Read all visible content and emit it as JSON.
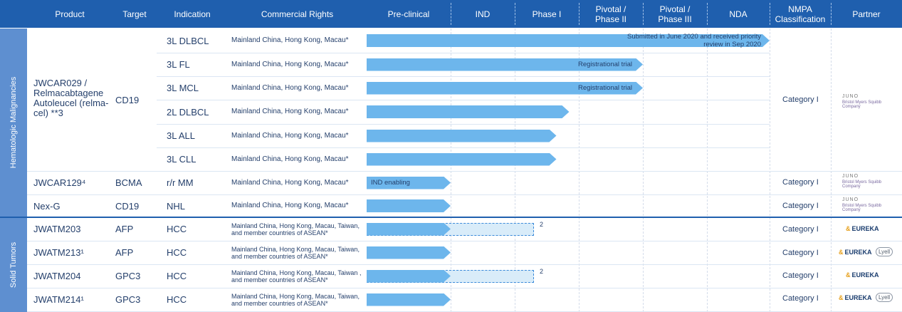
{
  "header": {
    "product": "Product",
    "target": "Target",
    "indication": "Indication",
    "rights": "Commercial Rights",
    "preclinical": "Pre-clinical",
    "ind": "IND",
    "phase1": "Phase I",
    "pivotal2": "Pivotal / Phase II",
    "pivotal3": "Pivotal / Phase III",
    "nda": "NDA",
    "nmpa": "NMPA Classification",
    "partner": "Partner"
  },
  "groups": {
    "heme": "Hematologic Malignancies",
    "solid": "Solid Tumors"
  },
  "rows": [
    {
      "product": "JWCAR029 / Relmacabtagene Autoleucel (relma-cel) **3",
      "target": "CD19",
      "indication": "3L DLBCL",
      "rights": "Mainland China, Hong Kong, Macau*",
      "bar_end_stage": 6.0,
      "bar_note": "Submitted in June 2020 and received priority review in Sep 2020"
    },
    {
      "product": "",
      "target": "",
      "indication": "3L FL",
      "rights": "Mainland China, Hong Kong, Macau*",
      "bar_end_stage": 4.0,
      "bar_note": "Registrational trial"
    },
    {
      "product": "",
      "target": "",
      "indication": "3L MCL",
      "rights": "Mainland China, Hong Kong, Macau*",
      "bar_end_stage": 4.0,
      "bar_note": "Registrational trial"
    },
    {
      "product": "",
      "target": "",
      "indication": "2L DLBCL",
      "rights": "Mainland China, Hong Kong, Macau*",
      "bar_end_stage": 2.85,
      "bar_note": ""
    },
    {
      "product": "",
      "target": "",
      "indication": "3L ALL",
      "rights": "Mainland China, Hong Kong, Macau*",
      "bar_end_stage": 2.65,
      "bar_note": ""
    },
    {
      "product": "",
      "target": "",
      "indication": "3L CLL",
      "rights": "Mainland China, Hong Kong, Macau*",
      "bar_end_stage": 2.65,
      "bar_note": ""
    },
    {
      "product": "JWCAR129⁴",
      "target": "BCMA",
      "indication": "r/r MM",
      "rights": "Mainland China, Hong Kong, Macau*",
      "bar_end_stage": 1.0,
      "bar_note": "IND enabling"
    },
    {
      "product": "Nex-G",
      "target": "CD19",
      "indication": "NHL",
      "rights": "Mainland China, Hong Kong, Macau*",
      "bar_end_stage": 1.0,
      "bar_note": ""
    },
    {
      "product": "JWATM203",
      "target": "AFP",
      "indication": "HCC",
      "rights": "Mainland China, Hong Kong, Macau, Taiwan, and member countries of ASEAN*",
      "bar_end_stage": 1.0,
      "dashed_end_stage": 2.3,
      "dashed_note": "2"
    },
    {
      "product": "JWATM213¹",
      "target": "AFP",
      "indication": "HCC",
      "rights": "Mainland China, Hong Kong, Macau, Taiwan, and member countries of ASEAN*",
      "bar_end_stage": 1.0
    },
    {
      "product": "JWATM204",
      "target": "GPC3",
      "indication": "HCC",
      "rights": "Mainland China, Hong Kong, Macau, Taiwan , and member countries of ASEAN*",
      "bar_end_stage": 1.0,
      "dashed_end_stage": 2.3,
      "dashed_note": "2"
    },
    {
      "product": "JWATM214¹",
      "target": "GPC3",
      "indication": "HCC",
      "rights": "Mainland China, Hong Kong, Macau, Taiwan, and member countries of ASEAN*",
      "bar_end_stage": 1.0
    }
  ],
  "nmpa": {
    "relma": "Category I",
    "bcma": "Category I",
    "nexg": "Category I",
    "r203": "Category I",
    "r213": "Category I",
    "r204": "Category I",
    "r214": "Category I"
  },
  "partners": {
    "juno": "JUNO",
    "bms": "Bristol Myers Squibb Company",
    "eureka": "EUREKA",
    "lyell": "Lyell"
  },
  "colors": {
    "header": "#1f5fae",
    "bar": "#6db6ec",
    "dashed_bar": "#d9ecf9",
    "group_label": "#5e8fd0"
  }
}
